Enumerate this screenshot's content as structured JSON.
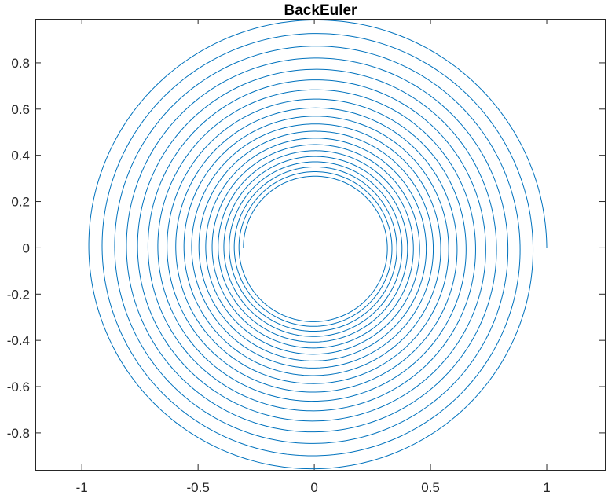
{
  "chart_data": {
    "type": "line",
    "title": "BackEuler",
    "xlabel": "",
    "ylabel": "",
    "xlim": [
      -1.2,
      1.25
    ],
    "ylim": [
      -0.96,
      0.99
    ],
    "xticks": [
      -1,
      -0.5,
      0,
      0.5,
      1
    ],
    "xtick_labels": [
      "-1",
      "-0.5",
      "0",
      "0.5",
      "1"
    ],
    "yticks": [
      -0.8,
      -0.6,
      -0.4,
      -0.2,
      0,
      0.2,
      0.4,
      0.6,
      0.8
    ],
    "ytick_labels": [
      "-0.8",
      "-0.6",
      "-0.4",
      "-0.2",
      "0",
      "0.2",
      "0.4",
      "0.6",
      "0.8"
    ],
    "grid": false,
    "line_color": "#0072BD",
    "series": [
      {
        "kind": "spiral",
        "start": [
          1,
          0
        ],
        "end_radius": 0.305,
        "turns": 19.5,
        "direction": "counterclockwise"
      }
    ]
  }
}
